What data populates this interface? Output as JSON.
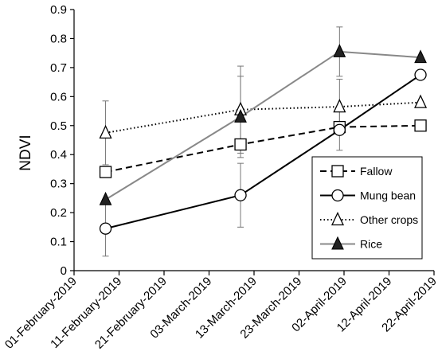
{
  "chart_data": {
    "type": "line",
    "ylabel": "NDVI",
    "xlabel": "",
    "title": "",
    "ylim": [
      0,
      0.9
    ],
    "y_ticks": [
      "0",
      "0.1",
      "0.2",
      "0.3",
      "0.4",
      "0.5",
      "0.6",
      "0.7",
      "0.8",
      "0.9"
    ],
    "x_ticks": [
      "01-February-2019",
      "11-February-2019",
      "21-February-2019",
      "03-March-2019",
      "13-March-2019",
      "23-March-2019",
      "02-April-2019",
      "12-April-2019",
      "22-April-2019"
    ],
    "x_dates": [
      "2019-02-01",
      "2019-02-11",
      "2019-02-21",
      "2019-03-03",
      "2019-03-13",
      "2019-03-23",
      "2019-04-02",
      "2019-04-12",
      "2019-04-22"
    ],
    "grid": false,
    "legend_position": "bottom-right",
    "series": [
      {
        "name": "Fallow",
        "line_style": "dashed",
        "marker": "square-open",
        "color": "#000000",
        "x": [
          "2019-02-08",
          "2019-03-10",
          "2019-04-01",
          "2019-04-19"
        ],
        "values": [
          0.34,
          0.435,
          0.495,
          0.5
        ],
        "errors": [
          null,
          null,
          null,
          null
        ]
      },
      {
        "name": "Mung bean",
        "line_style": "solid",
        "marker": "circle-open",
        "color": "#000000",
        "x": [
          "2019-02-08",
          "2019-03-10",
          "2019-04-01",
          "2019-04-19"
        ],
        "values": [
          0.145,
          0.26,
          0.485,
          0.675
        ],
        "errors": [
          0.095,
          0.11,
          0.07,
          null
        ]
      },
      {
        "name": "Other crops",
        "line_style": "dotted",
        "marker": "triangle-open",
        "color": "#000000",
        "x": [
          "2019-02-08",
          "2019-03-10",
          "2019-04-01",
          "2019-04-19"
        ],
        "values": [
          0.475,
          0.555,
          0.565,
          0.58
        ],
        "errors": [
          0.11,
          0.15,
          0.095,
          null
        ]
      },
      {
        "name": "Rice",
        "line_style": "solid",
        "marker": "triangle-filled",
        "color": "#888888",
        "x": [
          "2019-02-08",
          "2019-03-10",
          "2019-04-01",
          "2019-04-19"
        ],
        "values": [
          0.245,
          0.53,
          0.755,
          0.735
        ],
        "errors": [
          null,
          0.14,
          0.085,
          null
        ]
      }
    ]
  }
}
